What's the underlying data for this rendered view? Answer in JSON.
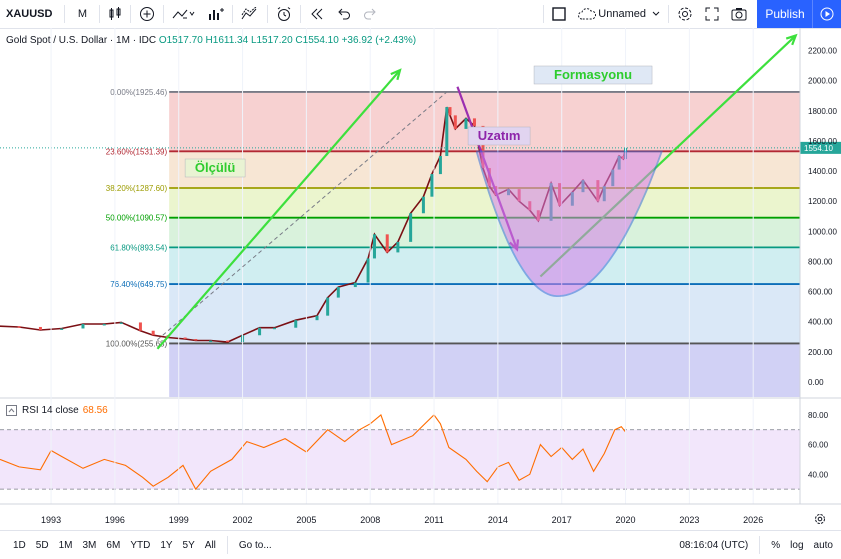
{
  "toolbar": {
    "symbol": "XAUUSD",
    "interval": "M",
    "layout_name": "Unnamed",
    "publish_label": "Publish",
    "icons": [
      "candles-icon",
      "add-indicator-icon",
      "indicators-icon",
      "compare-icon",
      "alert-icon",
      "replay-icon",
      "undo-icon",
      "redo-icon",
      "layout-icon",
      "settings-icon",
      "fullscreen-icon",
      "camera-icon"
    ]
  },
  "legend": {
    "title": "Gold Spot / U.S. Dollar · 1M · IDC",
    "ohlc": "O1517.70 H1611.34 L1517.20 C1554.10 +36.92 (+2.43%)"
  },
  "rsi": {
    "label": "RSI 14 close",
    "value": "68.56",
    "color": "#ff6d00"
  },
  "annotations": {
    "formasyon": "Formasyonu",
    "uzatim": "Uzatım",
    "olculu": "Ölçülü"
  },
  "last_price": "1554.10",
  "bottom": {
    "ranges": [
      "1D",
      "5D",
      "1M",
      "3M",
      "6M",
      "YTD",
      "1Y",
      "5Y",
      "All"
    ],
    "goto": "Go to...",
    "time": "08:16:04 (UTC)",
    "percent": "%",
    "log": "log",
    "auto": "auto"
  },
  "chart_data": {
    "type": "line",
    "ylim": [
      -100,
      2350
    ],
    "xlim": [
      1990.6,
      2028.2
    ],
    "yticks": [
      0,
      200,
      400,
      600,
      800,
      1000,
      1200,
      1400,
      1600,
      1800,
      2000,
      2200
    ],
    "xticks": [
      1993,
      1996,
      1999,
      2002,
      2005,
      2008,
      2011,
      2014,
      2017,
      2020,
      2023,
      2026
    ],
    "fib_levels": [
      {
        "label": "0.00%(1925.46)",
        "value": 1925.46,
        "color": "#787b86"
      },
      {
        "label": "23.60%(1531.39)",
        "value": 1531.39,
        "color": "#b22833"
      },
      {
        "label": "38.20%(1287.60)",
        "value": 1287.6,
        "color": "#9c9c00"
      },
      {
        "label": "50.00%(1090.57)",
        "value": 1090.57,
        "color": "#00a000"
      },
      {
        "label": "61.80%(893.54)",
        "value": 893.54,
        "color": "#089981"
      },
      {
        "label": "76.40%(649.75)",
        "value": 649.75,
        "color": "#0c6eb8"
      },
      {
        "label": "100.00%(255.68)",
        "value": 255.68,
        "color": "#555555"
      }
    ],
    "series": [
      {
        "name": "XAUUSD",
        "x": [
          1990.6,
          1991.5,
          1992.5,
          1993.5,
          1994.5,
          1995.5,
          1996.3,
          1997.2,
          1997.8,
          1998.5,
          1999.3,
          1999.8,
          2000.5,
          2001.3,
          2002.0,
          2002.8,
          2003.5,
          2004.5,
          2005.5,
          2006.0,
          2006.5,
          2007.3,
          2007.9,
          2008.2,
          2008.8,
          2009.3,
          2009.9,
          2010.5,
          2010.9,
          2011.3,
          2011.6,
          2011.75,
          2012.0,
          2012.5,
          2012.9,
          2013.3,
          2013.6,
          2013.9,
          2014.5,
          2015.0,
          2015.5,
          2015.9,
          2016.5,
          2016.9,
          2017.5,
          2018.0,
          2018.7,
          2019.0,
          2019.4,
          2019.7,
          2019.9,
          2020.0
        ],
        "values": [
          370,
          365,
          345,
          355,
          385,
          385,
          395,
          340,
          310,
          295,
          285,
          275,
          275,
          265,
          310,
          360,
          360,
          410,
          440,
          560,
          630,
          660,
          820,
          980,
          860,
          930,
          1120,
          1230,
          1380,
          1500,
          1825,
          1770,
          1680,
          1750,
          1700,
          1420,
          1300,
          1240,
          1280,
          1200,
          1140,
          1070,
          1320,
          1170,
          1260,
          1340,
          1200,
          1300,
          1410,
          1500,
          1480,
          1554.1
        ]
      },
      {
        "name": "RSI 14 close",
        "x": [
          1990.6,
          1991.5,
          1992.5,
          1993.0,
          1993.5,
          1994.5,
          1995.5,
          1996.5,
          1997.3,
          1997.8,
          1998.5,
          1999.2,
          1999.8,
          2000.5,
          2001.5,
          2002.2,
          2003.0,
          2004.0,
          2005.0,
          2006.0,
          2006.8,
          2007.5,
          2008.0,
          2008.5,
          2009.0,
          2010.0,
          2011.0,
          2011.3,
          2011.7,
          2012.5,
          2013.0,
          2013.5,
          2014.0,
          2014.5,
          2015.0,
          2015.5,
          2016.0,
          2016.5,
          2017.0,
          2017.5,
          2018.0,
          2018.5,
          2019.0,
          2019.5,
          2019.8,
          2020.0
        ],
        "values": [
          50,
          45,
          43,
          56,
          52,
          44,
          50,
          46,
          38,
          32,
          38,
          46,
          30,
          42,
          50,
          62,
          58,
          64,
          55,
          70,
          62,
          70,
          74,
          80,
          60,
          66,
          80,
          74,
          58,
          50,
          42,
          35,
          45,
          48,
          36,
          40,
          60,
          52,
          58,
          50,
          57,
          42,
          54,
          70,
          72,
          68.56
        ]
      }
    ],
    "rsi_ylim": [
      20,
      90
    ],
    "rsi_yticks": [
      40,
      60,
      80
    ],
    "rsi_band": [
      30,
      70
    ]
  }
}
